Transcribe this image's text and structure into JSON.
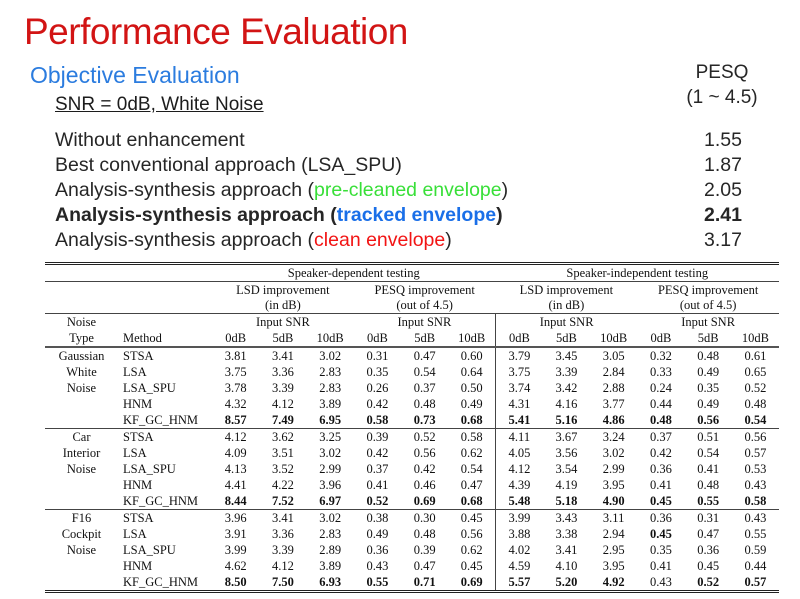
{
  "colors": {
    "title_red": "#d21414",
    "section_blue": "#2b7cdf",
    "highlight_green": "#38df38",
    "highlight_blue": "#1a6fe8",
    "highlight_red": "#f21414",
    "body_text": "#262626",
    "table_text": "#111111"
  },
  "slide": {
    "title": "Performance Evaluation",
    "section_heading": "Objective Evaluation",
    "condition_label": "SNR = 0dB, White Noise",
    "metric_name": "PESQ",
    "metric_range": "(1 ~ 4.5)",
    "results": [
      {
        "prefix": "Without enhancement",
        "highlight": "",
        "suffix": "",
        "value": "1.55",
        "bold": false
      },
      {
        "prefix": "Best conventional approach (LSA_SPU)",
        "highlight": "",
        "suffix": "",
        "value": "1.87",
        "bold": false
      },
      {
        "prefix": "Analysis-synthesis approach (",
        "highlight": "pre-cleaned envelope",
        "suffix": ")",
        "value": "2.05",
        "bold": false
      },
      {
        "prefix": "Analysis-synthesis approach (",
        "highlight": "tracked envelope",
        "suffix": ")",
        "value": "2.41",
        "bold": true
      },
      {
        "prefix": "Analysis-synthesis approach (",
        "highlight": "clean envelope",
        "suffix": ")",
        "value": "3.17",
        "bold": false
      }
    ]
  },
  "chart_data": {
    "type": "table",
    "group_headers": [
      "Speaker-dependent testing",
      "Speaker-independent testing"
    ],
    "metric_headers": [
      {
        "title": "LSD improvement",
        "unit": "(in dB)"
      },
      {
        "title": "PESQ improvement",
        "unit": "(out of 4.5)"
      },
      {
        "title": "LSD improvement",
        "unit": "(in dB)"
      },
      {
        "title": "PESQ improvement",
        "unit": "(out of 4.5)"
      }
    ],
    "row_header_top": "Noise",
    "row_header_bottom": "Type",
    "method_header": "Method",
    "input_snr_label": "Input SNR",
    "snr_levels": [
      "0dB",
      "5dB",
      "10dB"
    ],
    "blocks": [
      {
        "noise_type_lines": [
          "Gaussian",
          "White",
          "Noise",
          "",
          ""
        ],
        "rows": [
          {
            "method": "STSA",
            "values": [
              "3.81",
              "3.41",
              "3.02",
              "0.31",
              "0.47",
              "0.60",
              "3.79",
              "3.45",
              "3.05",
              "0.32",
              "0.48",
              "0.61"
            ],
            "bold_cells": []
          },
          {
            "method": "LSA",
            "values": [
              "3.75",
              "3.36",
              "2.83",
              "0.35",
              "0.54",
              "0.64",
              "3.75",
              "3.39",
              "2.84",
              "0.33",
              "0.49",
              "0.65"
            ],
            "bold_cells": []
          },
          {
            "method": "LSA_SPU",
            "values": [
              "3.78",
              "3.39",
              "2.83",
              "0.26",
              "0.37",
              "0.50",
              "3.74",
              "3.42",
              "2.88",
              "0.24",
              "0.35",
              "0.52"
            ],
            "bold_cells": []
          },
          {
            "method": "HNM",
            "values": [
              "4.32",
              "4.12",
              "3.89",
              "0.42",
              "0.48",
              "0.49",
              "4.31",
              "4.16",
              "3.77",
              "0.44",
              "0.49",
              "0.48"
            ],
            "bold_cells": []
          },
          {
            "method": "KF_GC_HNM",
            "values": [
              "8.57",
              "7.49",
              "6.95",
              "0.58",
              "0.73",
              "0.68",
              "5.41",
              "5.16",
              "4.86",
              "0.48",
              "0.56",
              "0.54"
            ],
            "bold_cells": [
              0,
              1,
              2,
              3,
              4,
              5,
              6,
              7,
              8,
              9,
              10,
              11
            ]
          }
        ]
      },
      {
        "noise_type_lines": [
          "Car",
          "Interior",
          "Noise",
          "",
          ""
        ],
        "rows": [
          {
            "method": "STSA",
            "values": [
              "4.12",
              "3.62",
              "3.25",
              "0.39",
              "0.52",
              "0.58",
              "4.11",
              "3.67",
              "3.24",
              "0.37",
              "0.51",
              "0.56"
            ],
            "bold_cells": []
          },
          {
            "method": "LSA",
            "values": [
              "4.09",
              "3.51",
              "3.02",
              "0.42",
              "0.56",
              "0.62",
              "4.05",
              "3.56",
              "3.02",
              "0.42",
              "0.54",
              "0.57"
            ],
            "bold_cells": []
          },
          {
            "method": "LSA_SPU",
            "values": [
              "4.13",
              "3.52",
              "2.99",
              "0.37",
              "0.42",
              "0.54",
              "4.12",
              "3.54",
              "2.99",
              "0.36",
              "0.41",
              "0.53"
            ],
            "bold_cells": []
          },
          {
            "method": "HNM",
            "values": [
              "4.41",
              "4.22",
              "3.96",
              "0.41",
              "0.46",
              "0.47",
              "4.39",
              "4.19",
              "3.95",
              "0.41",
              "0.48",
              "0.43"
            ],
            "bold_cells": []
          },
          {
            "method": "KF_GC_HNM",
            "values": [
              "8.44",
              "7.52",
              "6.97",
              "0.52",
              "0.69",
              "0.68",
              "5.48",
              "5.18",
              "4.90",
              "0.45",
              "0.55",
              "0.58"
            ],
            "bold_cells": [
              0,
              1,
              2,
              3,
              4,
              5,
              6,
              7,
              8,
              9,
              10,
              11
            ]
          }
        ]
      },
      {
        "noise_type_lines": [
          "F16",
          "Cockpit",
          "Noise",
          "",
          ""
        ],
        "rows": [
          {
            "method": "STSA",
            "values": [
              "3.96",
              "3.41",
              "3.02",
              "0.38",
              "0.30",
              "0.45",
              "3.99",
              "3.43",
              "3.11",
              "0.36",
              "0.31",
              "0.43"
            ],
            "bold_cells": []
          },
          {
            "method": "LSA",
            "values": [
              "3.91",
              "3.36",
              "2.83",
              "0.49",
              "0.48",
              "0.56",
              "3.88",
              "3.38",
              "2.94",
              "0.45",
              "0.47",
              "0.55"
            ],
            "bold_cells": [
              9
            ]
          },
          {
            "method": "LSA_SPU",
            "values": [
              "3.99",
              "3.39",
              "2.89",
              "0.36",
              "0.39",
              "0.62",
              "4.02",
              "3.41",
              "2.95",
              "0.35",
              "0.36",
              "0.59"
            ],
            "bold_cells": []
          },
          {
            "method": "HNM",
            "values": [
              "4.62",
              "4.12",
              "3.89",
              "0.43",
              "0.47",
              "0.45",
              "4.59",
              "4.10",
              "3.95",
              "0.41",
              "0.45",
              "0.44"
            ],
            "bold_cells": []
          },
          {
            "method": "KF_GC_HNM",
            "values": [
              "8.50",
              "7.50",
              "6.93",
              "0.55",
              "0.71",
              "0.69",
              "5.57",
              "5.20",
              "4.92",
              "0.43",
              "0.52",
              "0.57"
            ],
            "bold_cells": [
              0,
              1,
              2,
              3,
              4,
              5,
              6,
              7,
              8,
              10,
              11
            ]
          }
        ]
      }
    ]
  }
}
